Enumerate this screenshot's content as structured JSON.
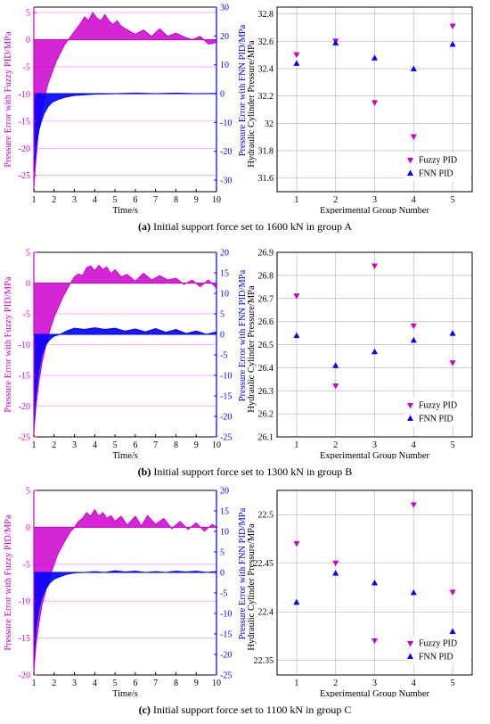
{
  "colors": {
    "fuzzy": "#cc00cc",
    "fnn": "#0000ff",
    "grid_pink": "#ff99ff",
    "grid_gray": "#bbbbbb"
  },
  "panels": [
    {
      "caption_letter": "(a)",
      "caption_text": " Initial support force set to 1600 kN in group A",
      "error_chart": {
        "type": "line",
        "xlabel": "Time/s",
        "ylabel_left": "Pressure Error with Fuzzy PID/MPa",
        "ylabel_right": "Pressure Error with FNN PID/MPa",
        "x_ticks": [
          1,
          2,
          3,
          4,
          5,
          6,
          7,
          8,
          9,
          10
        ],
        "left_ticks": [
          5,
          0,
          -5,
          -10,
          -15,
          -20,
          -25
        ],
        "right_ticks": [
          30,
          20,
          10,
          0,
          -10,
          -20,
          -30
        ],
        "left_ylim": [
          -28,
          6
        ],
        "right_ylim": [
          -34,
          30
        ],
        "series": [
          {
            "axis": "left",
            "values": [
              [
                1.0,
                -27
              ],
              [
                1.1,
                -22
              ],
              [
                1.2,
                -18
              ],
              [
                1.35,
                -14
              ],
              [
                1.5,
                -11
              ],
              [
                1.7,
                -8
              ],
              [
                1.9,
                -6
              ],
              [
                2.1,
                -4
              ],
              [
                2.3,
                -2.5
              ],
              [
                2.5,
                -1
              ],
              [
                2.7,
                0
              ],
              [
                2.9,
                1
              ],
              [
                3.1,
                2
              ],
              [
                3.3,
                3
              ],
              [
                3.5,
                4.2
              ],
              [
                3.7,
                3.5
              ],
              [
                3.9,
                5
              ],
              [
                4.1,
                4
              ],
              [
                4.3,
                3.5
              ],
              [
                4.5,
                4.6
              ],
              [
                4.7,
                3.5
              ],
              [
                4.9,
                2.8
              ],
              [
                5.1,
                3.5
              ],
              [
                5.3,
                2.5
              ],
              [
                5.6,
                1.8
              ],
              [
                6.0,
                1
              ],
              [
                6.4,
                1.8
              ],
              [
                6.8,
                0.6
              ],
              [
                7.2,
                2
              ],
              [
                7.6,
                0.6
              ],
              [
                8.0,
                1.2
              ],
              [
                8.4,
                0.5
              ],
              [
                8.8,
                0
              ],
              [
                9.2,
                0.6
              ],
              [
                9.6,
                -0.8
              ],
              [
                10,
                -0.5
              ]
            ]
          },
          {
            "axis": "right",
            "values": [
              [
                1.0,
                -28
              ],
              [
                1.1,
                -20
              ],
              [
                1.2,
                -14
              ],
              [
                1.35,
                -10
              ],
              [
                1.5,
                -7
              ],
              [
                1.7,
                -4.5
              ],
              [
                1.9,
                -3
              ],
              [
                2.2,
                -2
              ],
              [
                2.5,
                -1.3
              ],
              [
                3.0,
                -0.6
              ],
              [
                4.0,
                -0.2
              ],
              [
                5,
                0
              ],
              [
                6,
                0.2
              ],
              [
                7,
                0
              ],
              [
                8,
                0.2
              ],
              [
                9,
                0
              ],
              [
                10,
                0.1
              ]
            ]
          }
        ]
      },
      "pressure_chart": {
        "type": "scatter",
        "xlabel": "Experimental Group Number",
        "ylabel": "Hydraulic Cylinder Pressure/MPa",
        "categories": [
          1,
          2,
          3,
          4,
          5
        ],
        "y_ticks": [
          "32.8",
          "32.6",
          "32.4",
          "32.2",
          "32",
          "31.8",
          "31.6"
        ],
        "ylim": [
          31.5,
          32.85
        ],
        "series": [
          {
            "name": "Fuzzy PID",
            "values": [
              32.5,
              32.6,
              32.15,
              31.9,
              32.71
            ]
          },
          {
            "name": "FNN PID",
            "values": [
              32.44,
              32.59,
              32.48,
              32.4,
              32.58
            ]
          }
        ]
      }
    },
    {
      "caption_letter": "(b)",
      "caption_text": " Initial support force set to 1300 kN in group B",
      "error_chart": {
        "type": "line",
        "xlabel": "Time/s",
        "ylabel_left": "Pressure Error with Fuzzy PID/MPa",
        "ylabel_right": "Pressure Error with FNN PID/MPa",
        "x_ticks": [
          1,
          2,
          3,
          4,
          5,
          6,
          7,
          8,
          9,
          10
        ],
        "left_ticks": [
          5,
          0,
          -5,
          -10,
          -15,
          -20,
          -25
        ],
        "right_ticks": [
          20,
          15,
          10,
          5,
          0,
          -5,
          -10,
          -15,
          -20,
          -25
        ],
        "left_ylim": [
          -25,
          5
        ],
        "right_ylim": [
          -25,
          20
        ],
        "series": [
          {
            "axis": "left",
            "values": [
              [
                1.0,
                -24
              ],
              [
                1.1,
                -20
              ],
              [
                1.25,
                -16
              ],
              [
                1.4,
                -13
              ],
              [
                1.6,
                -10
              ],
              [
                1.8,
                -7.5
              ],
              [
                2.0,
                -5.5
              ],
              [
                2.2,
                -4
              ],
              [
                2.4,
                -2.5
              ],
              [
                2.6,
                -1.2
              ],
              [
                2.8,
                0
              ],
              [
                3.0,
                1
              ],
              [
                3.2,
                1.5
              ],
              [
                3.4,
                1.2
              ],
              [
                3.6,
                2.5
              ],
              [
                3.8,
                2.8
              ],
              [
                4.0,
                2
              ],
              [
                4.2,
                2.9
              ],
              [
                4.4,
                2.2
              ],
              [
                4.6,
                2.6
              ],
              [
                4.8,
                1.5
              ],
              [
                5.0,
                2.2
              ],
              [
                5.3,
                1
              ],
              [
                5.6,
                1.4
              ],
              [
                6.0,
                0.3
              ],
              [
                6.4,
                1.6
              ],
              [
                6.8,
                0.5
              ],
              [
                7.2,
                1.2
              ],
              [
                7.6,
                0.5
              ],
              [
                8.0,
                0.8
              ],
              [
                8.4,
                -0.2
              ],
              [
                8.8,
                0.5
              ],
              [
                9.2,
                -0.6
              ],
              [
                9.6,
                0.5
              ],
              [
                10,
                -0.8
              ]
            ]
          },
          {
            "axis": "right",
            "values": [
              [
                1.0,
                -24
              ],
              [
                1.1,
                -15
              ],
              [
                1.25,
                -9
              ],
              [
                1.4,
                -5
              ],
              [
                1.6,
                -2.5
              ],
              [
                1.8,
                -1.2
              ],
              [
                2.0,
                -0.4
              ],
              [
                2.3,
                0
              ],
              [
                2.6,
                0.8
              ],
              [
                3.0,
                1.5
              ],
              [
                3.5,
                1.2
              ],
              [
                4.0,
                1.6
              ],
              [
                4.5,
                1.2
              ],
              [
                5.0,
                1.5
              ],
              [
                5.5,
                0.8
              ],
              [
                6.0,
                1.3
              ],
              [
                6.5,
                0.6
              ],
              [
                7.0,
                1.4
              ],
              [
                7.5,
                0.5
              ],
              [
                8.0,
                1.2
              ],
              [
                8.5,
                0.2
              ],
              [
                9.0,
                0.8
              ],
              [
                9.5,
                0
              ],
              [
                10,
                0.6
              ]
            ]
          }
        ]
      },
      "pressure_chart": {
        "type": "scatter",
        "xlabel": "Experimental Group Number",
        "ylabel": "Hydraulic Cylinder Pressure/MPa",
        "categories": [
          1,
          2,
          3,
          4,
          5
        ],
        "y_ticks": [
          "26.9",
          "26.8",
          "26.7",
          "26.6",
          "26.5",
          "26.4",
          "26.3",
          "26.2",
          "26.1"
        ],
        "ylim": [
          26.1,
          26.9
        ],
        "series": [
          {
            "name": "Fuzzy PID",
            "values": [
              26.71,
              26.32,
              26.84,
              26.58,
              26.42
            ]
          },
          {
            "name": "FNN PID",
            "values": [
              26.54,
              26.41,
              26.47,
              26.52,
              26.55
            ]
          }
        ]
      }
    },
    {
      "caption_letter": "(c)",
      "caption_text": " Initial support force set to 1100 kN in group C",
      "error_chart": {
        "type": "line",
        "xlabel": "Time/s",
        "ylabel_left": "Pressure Error with Fuzzy PID/MPa",
        "ylabel_right": "Pressure Error with FNN PID/MPa",
        "x_ticks": [
          1,
          2,
          3,
          4,
          5,
          6,
          7,
          8,
          9,
          10
        ],
        "left_ticks": [
          5,
          0,
          -5,
          -10,
          -15,
          -20
        ],
        "right_ticks": [
          20,
          15,
          10,
          5,
          0,
          -5,
          -10,
          -15,
          -20,
          -25
        ],
        "left_ylim": [
          -20,
          5
        ],
        "right_ylim": [
          -25,
          20
        ],
        "series": [
          {
            "axis": "left",
            "values": [
              [
                1.0,
                -19.5
              ],
              [
                1.1,
                -16
              ],
              [
                1.25,
                -13
              ],
              [
                1.4,
                -10.5
              ],
              [
                1.6,
                -8.5
              ],
              [
                1.8,
                -6.5
              ],
              [
                2.0,
                -5
              ],
              [
                2.2,
                -3.5
              ],
              [
                2.4,
                -2.5
              ],
              [
                2.6,
                -1.5
              ],
              [
                2.8,
                -0.6
              ],
              [
                3.0,
                0
              ],
              [
                3.2,
                0.8
              ],
              [
                3.4,
                1.2
              ],
              [
                3.6,
                2
              ],
              [
                3.8,
                1.5
              ],
              [
                4.0,
                2.4
              ],
              [
                4.2,
                1.5
              ],
              [
                4.4,
                2
              ],
              [
                4.6,
                1.2
              ],
              [
                4.8,
                1.6
              ],
              [
                5.0,
                0.8
              ],
              [
                5.3,
                1.5
              ],
              [
                5.6,
                0.3
              ],
              [
                6.0,
                1.5
              ],
              [
                6.3,
                0.2
              ],
              [
                6.6,
                1.6
              ],
              [
                7.0,
                0.4
              ],
              [
                7.4,
                1.2
              ],
              [
                7.8,
                -0.2
              ],
              [
                8.2,
                0.8
              ],
              [
                8.6,
                -0.3
              ],
              [
                9.0,
                0.6
              ],
              [
                9.4,
                -0.5
              ],
              [
                9.8,
                0.4
              ],
              [
                10,
                0
              ]
            ]
          },
          {
            "axis": "right",
            "values": [
              [
                1.0,
                -22
              ],
              [
                1.1,
                -14
              ],
              [
                1.25,
                -9
              ],
              [
                1.4,
                -6
              ],
              [
                1.6,
                -4
              ],
              [
                1.8,
                -2.5
              ],
              [
                2.0,
                -1.6
              ],
              [
                2.3,
                -1
              ],
              [
                2.6,
                -0.5
              ],
              [
                3.0,
                -0.1
              ],
              [
                3.5,
                0
              ],
              [
                4.0,
                0.2
              ],
              [
                4.5,
                0
              ],
              [
                5.0,
                0.4
              ],
              [
                5.5,
                0.1
              ],
              [
                6.0,
                0.3
              ],
              [
                6.5,
                0
              ],
              [
                7.0,
                0.2
              ],
              [
                7.5,
                0
              ],
              [
                8.0,
                0.3
              ],
              [
                8.5,
                0.1
              ],
              [
                9.0,
                0.3
              ],
              [
                9.5,
                0
              ],
              [
                10,
                0.2
              ]
            ]
          }
        ]
      },
      "pressure_chart": {
        "type": "scatter",
        "xlabel": "Experimental Group Number",
        "ylabel": "Hydraulic Cylinder Pressure/MPa",
        "categories": [
          1,
          2,
          3,
          4,
          5
        ],
        "y_ticks": [
          "22.5",
          "22.45",
          "22.4",
          "22.35"
        ],
        "ylim": [
          22.335,
          22.525
        ],
        "series": [
          {
            "name": "Fuzzy PID",
            "values": [
              22.47,
              22.45,
              22.37,
              22.51,
              22.42
            ]
          },
          {
            "name": "FNN PID",
            "values": [
              22.41,
              22.44,
              22.43,
              22.42,
              22.38
            ]
          }
        ]
      }
    }
  ]
}
